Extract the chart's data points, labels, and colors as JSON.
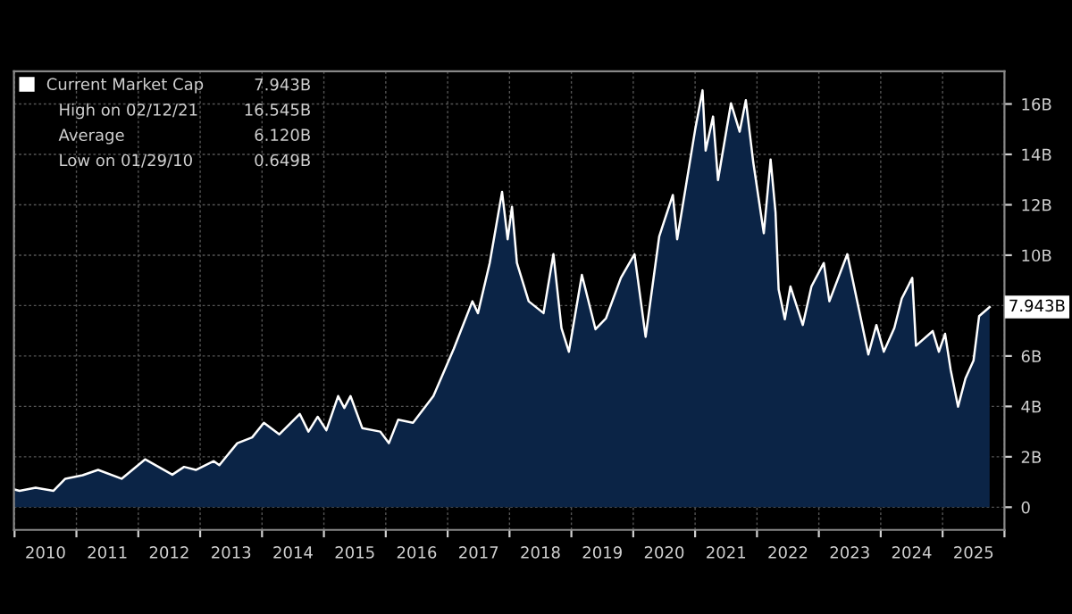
{
  "chart_data": {
    "type": "area",
    "legend": "top left",
    "grid": true,
    "marker": "none",
    "line_style": "solid",
    "xlim": [
      2009.99,
      2026.0
    ],
    "ylim": [
      -0.9,
      17.3
    ],
    "xticks": [
      {
        "value": 2010,
        "label": null
      },
      {
        "value": 2010.5,
        "label": "2010"
      },
      {
        "value": 2011,
        "label": null
      },
      {
        "value": 2011.5,
        "label": "2011"
      },
      {
        "value": 2012,
        "label": null
      },
      {
        "value": 2012.5,
        "label": "2012"
      },
      {
        "value": 2013,
        "label": null
      },
      {
        "value": 2013.5,
        "label": "2013"
      },
      {
        "value": 2014,
        "label": null
      },
      {
        "value": 2014.5,
        "label": "2014"
      },
      {
        "value": 2015,
        "label": null
      },
      {
        "value": 2015.5,
        "label": "2015"
      },
      {
        "value": 2016,
        "label": null
      },
      {
        "value": 2016.5,
        "label": "2016"
      },
      {
        "value": 2017,
        "label": null
      },
      {
        "value": 2017.5,
        "label": "2017"
      },
      {
        "value": 2018,
        "label": null
      },
      {
        "value": 2018.5,
        "label": "2018"
      },
      {
        "value": 2019,
        "label": null
      },
      {
        "value": 2019.5,
        "label": "2019"
      },
      {
        "value": 2020,
        "label": null
      },
      {
        "value": 2020.5,
        "label": "2020"
      },
      {
        "value": 2021,
        "label": null
      },
      {
        "value": 2021.5,
        "label": "2021"
      },
      {
        "value": 2022,
        "label": null
      },
      {
        "value": 2022.5,
        "label": "2022"
      },
      {
        "value": 2023,
        "label": null
      },
      {
        "value": 2023.5,
        "label": "2023"
      },
      {
        "value": 2024,
        "label": null
      },
      {
        "value": 2024.5,
        "label": "2024"
      },
      {
        "value": 2025,
        "label": null
      },
      {
        "value": 2025.5,
        "label": "2025"
      },
      {
        "value": 2026,
        "label": null
      }
    ],
    "yticks": [
      0,
      {
        "value": 2,
        "label": "2B"
      },
      {
        "value": 4,
        "label": "4B"
      },
      {
        "value": 6,
        "label": "6B"
      },
      {
        "value": 8,
        "label": null
      },
      {
        "value": 10,
        "label": "10B"
      },
      {
        "value": 12,
        "label": "12B"
      },
      {
        "value": 14,
        "label": "14B"
      },
      {
        "value": 16,
        "label": "16B"
      }
    ],
    "series": [
      {
        "name": "Current Market Cap",
        "color": "#ffffff",
        "x": [
          2010.0,
          2010.08,
          2010.34,
          2010.63,
          2010.82,
          2011.1,
          2011.35,
          2011.73,
          2012.11,
          2012.55,
          2012.74,
          2012.93,
          2013.22,
          2013.31,
          2013.6,
          2013.84,
          2014.03,
          2014.28,
          2014.61,
          2014.75,
          2014.9,
          2015.04,
          2015.23,
          2015.33,
          2015.43,
          2015.62,
          2015.91,
          2016.05,
          2016.2,
          2016.44,
          2016.77,
          2017.1,
          2017.4,
          2017.49,
          2017.68,
          2017.88,
          2017.97,
          2018.04,
          2018.12,
          2018.31,
          2018.55,
          2018.71,
          2018.84,
          2018.96,
          2019.17,
          2019.39,
          2019.56,
          2019.8,
          2020.02,
          2020.2,
          2020.42,
          2020.64,
          2020.71,
          2021.0,
          2021.12,
          2021.17,
          2021.29,
          2021.37,
          2021.58,
          2021.72,
          2021.82,
          2021.94,
          2022.11,
          2022.22,
          2022.3,
          2022.35,
          2022.45,
          2022.54,
          2022.74,
          2022.88,
          2023.08,
          2023.17,
          2023.46,
          2023.69,
          2023.8,
          2023.93,
          2024.05,
          2024.22,
          2024.34,
          2024.51,
          2024.57,
          2024.84,
          2024.94,
          2025.04,
          2025.13,
          2025.25,
          2025.37,
          2025.5,
          2025.59,
          2025.76
        ],
        "values": [
          0.7,
          0.649,
          0.77,
          0.65,
          1.13,
          1.27,
          1.48,
          1.13,
          1.9,
          1.29,
          1.6,
          1.48,
          1.83,
          1.67,
          2.54,
          2.77,
          3.35,
          2.89,
          3.7,
          3.0,
          3.59,
          3.05,
          4.41,
          3.94,
          4.41,
          3.14,
          3.0,
          2.54,
          3.47,
          3.35,
          4.41,
          6.29,
          8.17,
          7.7,
          9.69,
          12.51,
          10.63,
          11.92,
          9.69,
          8.17,
          7.7,
          10.04,
          7.11,
          6.17,
          9.22,
          7.06,
          7.5,
          9.1,
          10.04,
          6.76,
          10.75,
          12.39,
          10.63,
          14.97,
          16.545,
          14.15,
          15.5,
          12.98,
          16.03,
          14.9,
          16.15,
          13.68,
          10.87,
          13.8,
          11.69,
          8.64,
          7.46,
          8.76,
          7.23,
          8.76,
          9.69,
          8.17,
          10.04,
          7.35,
          6.06,
          7.23,
          6.17,
          7.11,
          8.28,
          9.1,
          6.41,
          6.99,
          6.17,
          6.88,
          5.46,
          3.99,
          5.11,
          5.82,
          7.58,
          7.943
        ]
      }
    ],
    "annotations": [
      "7.943B",
      "High on 02/12/21",
      "16.545B",
      "Average",
      "6.120B",
      "Low on 01/29/10",
      "0.649B",
      {
        "text": "7.943B",
        "y": 7.943
      }
    ]
  }
}
